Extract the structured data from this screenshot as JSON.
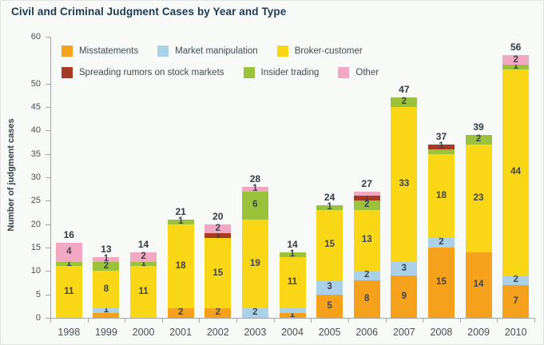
{
  "chart_data": {
    "type": "bar",
    "stacked": true,
    "title": "Civil and Criminal Judgment Cases by Year and Type",
    "xlabel": "",
    "ylabel": "Number of judgment cases",
    "ylim": [
      0,
      60
    ],
    "grid": false,
    "legend_position": "top-left, two rows, inside plot",
    "categories": [
      "1998",
      "1999",
      "2000",
      "2001",
      "2002",
      "2003",
      "2004",
      "2005",
      "2006",
      "2007",
      "2008",
      "2009",
      "2010"
    ],
    "y_ticks": [
      0,
      5,
      10,
      15,
      20,
      25,
      30,
      35,
      40,
      45,
      50,
      55,
      60
    ],
    "y_tick_labels": [
      "0",
      "5",
      "10",
      "15",
      "20",
      "25",
      "30",
      "35",
      "40",
      "45",
      "50",
      "",
      "60"
    ],
    "series": [
      {
        "name": "Misstatements",
        "color": "#F5A11C",
        "values": [
          0,
          1,
          0,
          2,
          2,
          0,
          1,
          5,
          8,
          9,
          15,
          14,
          7
        ],
        "labels": [
          "",
          "",
          "",
          "2",
          "2",
          "",
          "1",
          "5",
          "8",
          "9",
          "15",
          "14",
          "7"
        ]
      },
      {
        "name": "Market manipulation",
        "color": "#ABD1E9",
        "values": [
          0,
          1,
          0,
          0,
          0,
          2,
          1,
          3,
          2,
          3,
          2,
          0,
          2
        ],
        "labels": [
          "",
          "1",
          "",
          "",
          "",
          "2",
          "",
          "3",
          "2",
          "3",
          "2",
          "",
          "2"
        ]
      },
      {
        "name": "Broker-customer",
        "color": "#F9D616",
        "values": [
          11,
          8,
          11,
          18,
          15,
          19,
          11,
          15,
          13,
          33,
          18,
          23,
          44
        ],
        "labels": [
          "11",
          "8",
          "11",
          "18",
          "15",
          "19",
          "11",
          "15",
          "13",
          "33",
          "18",
          "23",
          "44"
        ]
      },
      {
        "name": "Insider trading",
        "color": "#9BC23B",
        "values": [
          1,
          2,
          1,
          1,
          0,
          6,
          1,
          1,
          2,
          2,
          1,
          2,
          1
        ],
        "labels": [
          "1",
          "2",
          "1",
          "1",
          "",
          "6",
          "1",
          "1",
          "2",
          "2",
          "",
          "2",
          "1"
        ]
      },
      {
        "name": "Spreading rumors on stock markets",
        "color": "#A63B22",
        "values": [
          0,
          0,
          0,
          0,
          1,
          0,
          0,
          0,
          1,
          0,
          1,
          0,
          0
        ],
        "labels": [
          "",
          "",
          "",
          "",
          "1",
          "",
          "",
          "",
          "1",
          "",
          "1",
          "",
          ""
        ]
      },
      {
        "name": "Other",
        "color": "#F2A7C3",
        "values": [
          4,
          1,
          2,
          0,
          2,
          1,
          0,
          0,
          1,
          0,
          0,
          0,
          2
        ],
        "labels": [
          "4",
          "1",
          "2",
          "",
          "2",
          "1",
          "",
          "",
          "",
          "",
          "",
          "",
          "2"
        ]
      }
    ],
    "totals": [
      16,
      13,
      14,
      21,
      20,
      28,
      14,
      24,
      27,
      47,
      37,
      39,
      56
    ]
  },
  "legend": {
    "items": [
      {
        "label": "Misstatements",
        "color": "#F5A11C"
      },
      {
        "label": "Market manipulation",
        "color": "#ABD1E9"
      },
      {
        "label": "Broker-customer",
        "color": "#F9D616"
      },
      {
        "label": "Spreading rumors on stock markets",
        "color": "#A63B22"
      },
      {
        "label": "Insider trading",
        "color": "#9BC23B"
      },
      {
        "label": "Other",
        "color": "#F2A7C3"
      }
    ]
  }
}
